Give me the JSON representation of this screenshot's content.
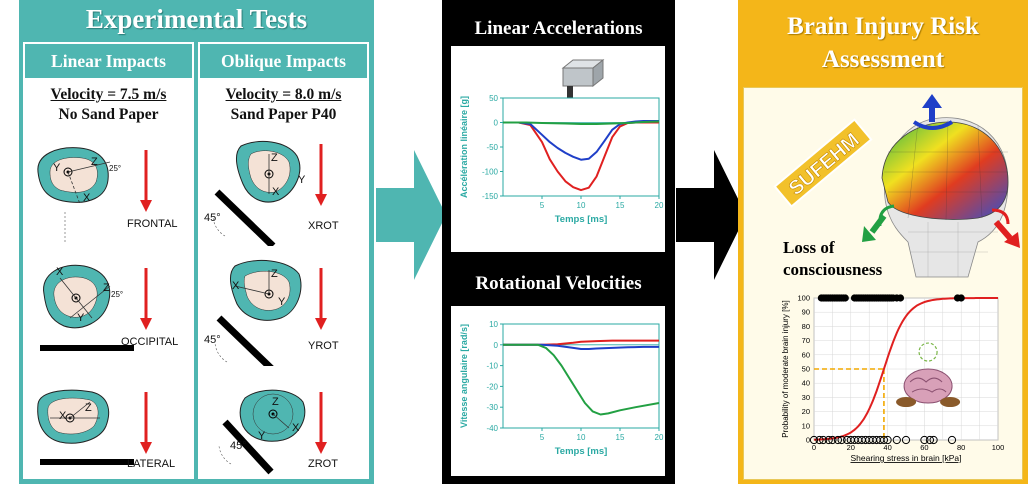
{
  "experimental": {
    "title": "Experimental Tests",
    "linear": {
      "heading": "Linear Impacts",
      "velocity": "Velocity = 7.5 m/s",
      "paper": "No Sand Paper",
      "impacts": [
        "FRONTAL",
        "OCCIPITAL",
        "LATERAL"
      ]
    },
    "oblique": {
      "heading": "Oblique Impacts",
      "velocity": "Velocity = 8.0 m/s",
      "paper": "Sand Paper P40",
      "impacts": [
        "XROT",
        "YROT",
        "ZROT"
      ],
      "angle": "45°"
    },
    "axis_labels": {
      "x": "X",
      "y": "Y",
      "z": "Z",
      "deg": "25°"
    }
  },
  "accelerations": {
    "title": "Linear Accelerations",
    "chart_data": {
      "type": "line",
      "xlabel": "Temps [ms]",
      "ylabel": "Accélération linéaire [g]",
      "xlim": [
        0,
        20
      ],
      "ylim": [
        -150,
        50
      ],
      "xticks": [
        5,
        10,
        15,
        20
      ],
      "yticks": [
        50,
        0,
        -50,
        -100,
        -150
      ],
      "series": [
        {
          "color": "#e02020",
          "x": [
            0,
            2,
            3.5,
            5,
            6,
            7,
            8,
            9,
            10,
            11,
            12,
            13,
            14,
            15,
            16,
            17,
            18,
            20
          ],
          "y": [
            0,
            0,
            -5,
            -40,
            -75,
            -100,
            -120,
            -132,
            -138,
            -133,
            -110,
            -70,
            -30,
            -8,
            -1,
            0,
            0,
            0
          ]
        },
        {
          "color": "#1f3fc8",
          "x": [
            0,
            2,
            3.5,
            5,
            6,
            7,
            8,
            9,
            10,
            11,
            12,
            13,
            14,
            15,
            16,
            17,
            18,
            20
          ],
          "y": [
            0,
            0,
            -3,
            -25,
            -40,
            -52,
            -62,
            -70,
            -76,
            -74,
            -60,
            -38,
            -15,
            -3,
            0,
            2,
            3,
            3
          ]
        },
        {
          "color": "#22a043",
          "x": [
            0,
            3,
            5,
            8,
            10,
            12,
            14,
            16,
            18,
            20
          ],
          "y": [
            0,
            0,
            -1,
            -2,
            -3,
            -3,
            -2,
            -1,
            1,
            2
          ]
        }
      ]
    }
  },
  "velocities": {
    "title": "Rotational Velocities",
    "chart_data": {
      "type": "line",
      "xlabel": "Temps [ms]",
      "ylabel": "Vitesse angulaire [rad/s]",
      "xlim": [
        0,
        20
      ],
      "ylim": [
        -40,
        10
      ],
      "xticks": [
        5,
        10,
        15,
        20
      ],
      "yticks": [
        10,
        0,
        -10,
        -20,
        -30,
        -40
      ],
      "series": [
        {
          "color": "#e02020",
          "x": [
            0,
            5,
            7,
            9,
            10,
            12,
            14,
            16,
            18,
            20
          ],
          "y": [
            0,
            0,
            0.3,
            1,
            1.5,
            1.8,
            2,
            2,
            2,
            2
          ]
        },
        {
          "color": "#1f3fc8",
          "x": [
            0,
            5,
            7,
            9,
            10,
            11,
            12,
            14,
            16,
            18,
            20
          ],
          "y": [
            0,
            0,
            -0.5,
            -1.5,
            -2,
            -2,
            -1.8,
            -1.5,
            -1.2,
            -1,
            -1
          ]
        },
        {
          "color": "#22a043",
          "x": [
            0,
            4.5,
            5.5,
            6.5,
            7.5,
            8.5,
            9.5,
            10.5,
            11.5,
            12.5,
            13.5,
            15,
            17,
            20
          ],
          "y": [
            0,
            0,
            -1.5,
            -5,
            -10,
            -16,
            -22,
            -28,
            -32,
            -33.5,
            -33,
            -31.5,
            -30,
            -28
          ]
        }
      ]
    }
  },
  "risk": {
    "title_line1": "Brain Injury Risk",
    "title_line2": "Assessment",
    "model_name": "SUFEHM",
    "loss_line1": "Loss of",
    "loss_line2": "consciousness",
    "chart_data": {
      "type": "scatter",
      "xlabel": "Shearing stress in brain [kPa]",
      "ylabel": "Probability of moderate brain injury [%]",
      "xlim": [
        0,
        100
      ],
      "ylim": [
        0,
        100
      ],
      "xticks": [
        0,
        10,
        20,
        30,
        40,
        50,
        60,
        70,
        80,
        90,
        100
      ],
      "yticks": [
        0,
        10,
        20,
        30,
        40,
        50,
        60,
        70,
        80,
        90,
        100
      ],
      "curve": {
        "color": "#e02020",
        "x50": 38,
        "k": 0.16
      },
      "threshold": {
        "x": 38,
        "y": 50
      },
      "injured_x": [
        4,
        5,
        6,
        7,
        8,
        9,
        10,
        11,
        12,
        13,
        14,
        15,
        16,
        17,
        22,
        23,
        24,
        25,
        26,
        27,
        28,
        29,
        30,
        31,
        32,
        33,
        34,
        35,
        36,
        37,
        38,
        39,
        40,
        41,
        42,
        43,
        45,
        47,
        78,
        80
      ],
      "uninjured_x": [
        0,
        3,
        5,
        8,
        10,
        13,
        15,
        18,
        20,
        22,
        24,
        26,
        28,
        30,
        32,
        34,
        36,
        38,
        40,
        45,
        50,
        60,
        63,
        65,
        75
      ]
    }
  }
}
